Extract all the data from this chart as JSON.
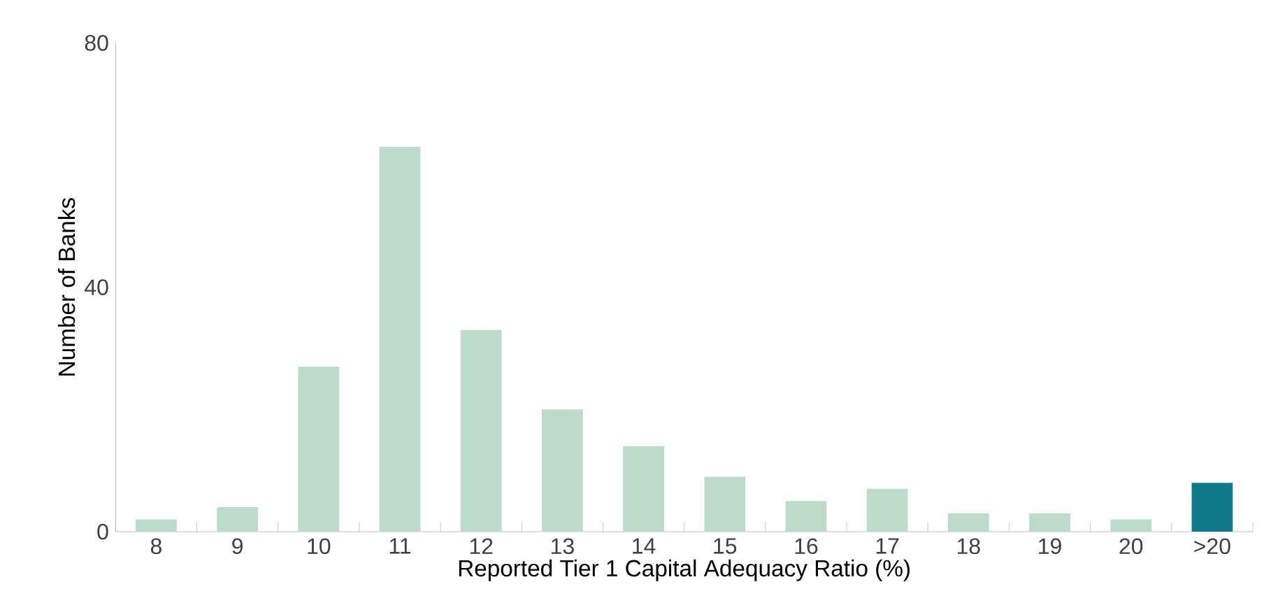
{
  "chart_data": {
    "type": "bar",
    "xlabel": "Reported Tier 1 Capital Adequacy Ratio (%)",
    "ylabel": "Number of Banks",
    "categories": [
      "8",
      "9",
      "10",
      "11",
      "12",
      "13",
      "14",
      "15",
      "16",
      "17",
      "18",
      "19",
      "20",
      ">20"
    ],
    "values": [
      2,
      4,
      27,
      63,
      33,
      20,
      14,
      9,
      5,
      7,
      3,
      3,
      2,
      8
    ],
    "colors": [
      "#bddbcb",
      "#bddbcb",
      "#bddbcb",
      "#bddbcb",
      "#bddbcb",
      "#bddbcb",
      "#bddbcb",
      "#bddbcb",
      "#bddbcb",
      "#bddbcb",
      "#bddbcb",
      "#bddbcb",
      "#bddbcb",
      "#0e7a8a"
    ],
    "ylim": [
      0,
      80
    ],
    "yticks": [
      0,
      40,
      80
    ]
  }
}
